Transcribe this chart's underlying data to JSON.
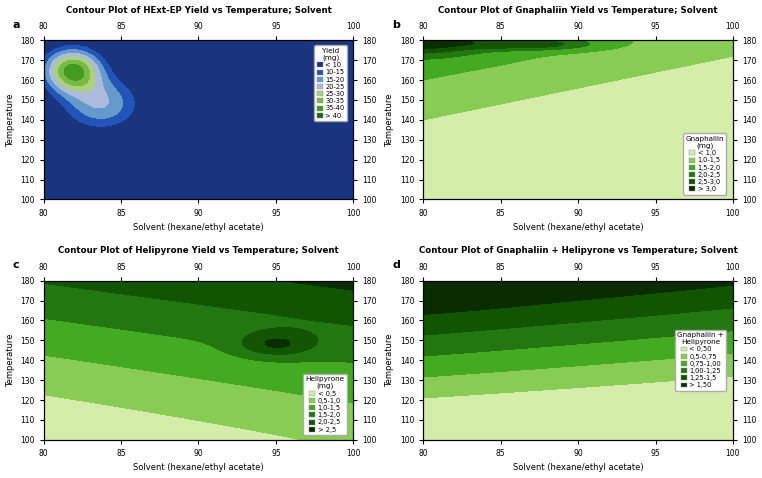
{
  "xlim": [
    80,
    100
  ],
  "ylim": [
    100,
    180
  ],
  "xticks": [
    80,
    85,
    90,
    95,
    100
  ],
  "yticks": [
    100,
    110,
    120,
    130,
    140,
    150,
    160,
    170,
    180
  ],
  "xlabel": "Solvent (hexane/ethyl acetate)",
  "ylabel": "Temperature",
  "plot_a": {
    "title": "Contour Plot of HExt-EP Yield vs Temperature; Solvent",
    "label": "a",
    "legend_title": "Yield\n(mg)",
    "levels": [
      0,
      10,
      15,
      20,
      25,
      30,
      35,
      40,
      55
    ],
    "colors": [
      "#1a3580",
      "#2255b8",
      "#6699cc",
      "#aabbdd",
      "#aad080",
      "#77bb44",
      "#449922",
      "#1a6612"
    ],
    "legend_labels": [
      "< 10",
      "10-15",
      "15-20",
      "20-25",
      "25-30",
      "30-35",
      "35-40",
      "> 40"
    ]
  },
  "plot_b": {
    "title": "Contour Plot of Gnaphaliin Yield vs Temperature; Solvent",
    "label": "b",
    "legend_title": "Gnaphaliin\n(mg)",
    "levels": [
      0,
      1.0,
      1.5,
      2.0,
      2.5,
      3.0,
      5.0
    ],
    "colors": [
      "#d4eeaa",
      "#88cc55",
      "#44aa22",
      "#227711",
      "#115500",
      "#0a2d00"
    ],
    "legend_labels": [
      "< 1,0",
      "1,0-1,5",
      "1,5-2,0",
      "2,0-2,5",
      "2,5-3,0",
      "> 3,0"
    ]
  },
  "plot_c": {
    "title": "Contour Plot of Helipyrone Yield vs Temperature; Solvent",
    "label": "c",
    "legend_title": "Helipyrone\n(mg)",
    "levels": [
      0,
      0.5,
      1.0,
      1.5,
      2.0,
      2.5,
      4.0
    ],
    "colors": [
      "#d4eeaa",
      "#88cc55",
      "#44aa22",
      "#227711",
      "#115500",
      "#0a2d00"
    ],
    "legend_labels": [
      "< 0,5",
      "0,5-1,0",
      "1,0-1,5",
      "1,5-2,0",
      "2,0-2,5",
      "> 2,5"
    ]
  },
  "plot_d": {
    "title": "Contour Plot of Gnaphaliin + Helipyrone vs Temperature; Solvent",
    "label": "d",
    "legend_title": "Gnaphaliin +\nHelipyrone",
    "levels": [
      0,
      0.5,
      0.75,
      1.0,
      1.25,
      1.5,
      3.0
    ],
    "colors": [
      "#d4eeaa",
      "#88cc55",
      "#44aa22",
      "#227711",
      "#115500",
      "#0a2d00"
    ],
    "legend_labels": [
      "< 0,50",
      "0,5-0,75",
      "0,75-1,00",
      "1,00-1,25",
      "1,25-1,5",
      "> 1,50"
    ]
  }
}
